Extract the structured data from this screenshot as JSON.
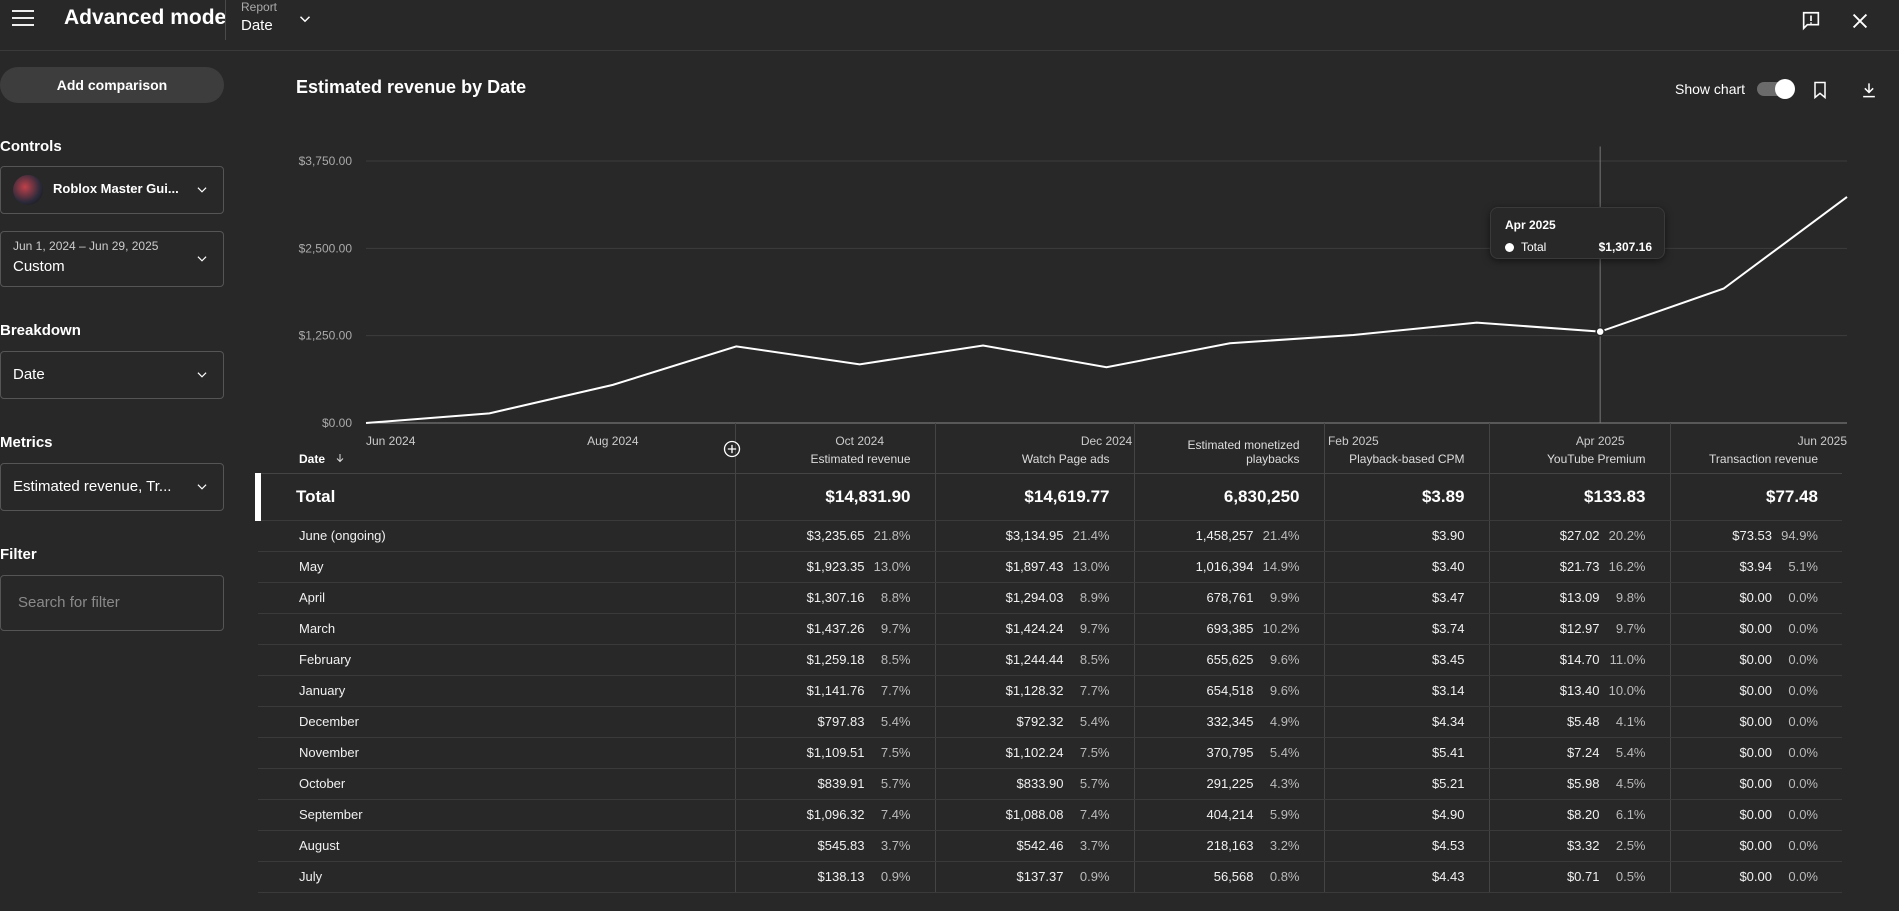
{
  "header": {
    "title": "Advanced mode",
    "report_label": "Report",
    "report_value": "Date"
  },
  "sidebar": {
    "add_comparison": "Add comparison",
    "controls_label": "Controls",
    "channel_name": "Roblox Master Gui...",
    "date_range": "Jun 1, 2024 – Jun 29, 2025",
    "date_preset": "Custom",
    "breakdown_label": "Breakdown",
    "breakdown_value": "Date",
    "metrics_label": "Metrics",
    "metrics_value": "Estimated revenue, Tr...",
    "filter_label": "Filter",
    "filter_placeholder": "Search for filter"
  },
  "chart": {
    "title": "Estimated revenue by Date",
    "show_chart_label": "Show chart",
    "tooltip": {
      "title": "Apr 2025",
      "series": "Total",
      "value": "$1,307.16"
    }
  },
  "chart_data": {
    "type": "line",
    "title": "Estimated revenue by Date",
    "xlabel": "",
    "ylabel": "",
    "ylim": [
      0,
      3750
    ],
    "y_ticks": [
      "$0.00",
      "$1,250.00",
      "$2,500.00",
      "$3,750.00"
    ],
    "x_ticks": [
      "Jun 2024",
      "Aug 2024",
      "Oct 2024",
      "Dec 2024",
      "Feb 2025",
      "Apr 2025",
      "Jun 2025"
    ],
    "x": [
      "Jun 2024",
      "Jul 2024",
      "Aug 2024",
      "Sep 2024",
      "Oct 2024",
      "Nov 2024",
      "Dec 2024",
      "Jan 2025",
      "Feb 2025",
      "Mar 2025",
      "Apr 2025",
      "May 2025",
      "Jun 2025"
    ],
    "series": [
      {
        "name": "Total",
        "values": [
          0,
          138.13,
          545.83,
          1096.32,
          839.91,
          1109.51,
          797.83,
          1141.76,
          1259.18,
          1437.26,
          1307.16,
          1923.35,
          3235.65
        ]
      }
    ],
    "highlight_index": 10,
    "grid": true,
    "line_color": "#ffffff"
  },
  "table": {
    "columns": [
      {
        "label": "Date",
        "sorted": "desc"
      },
      {
        "label": "Estimated revenue"
      },
      {
        "label": "Watch Page ads"
      },
      {
        "label": "Estimated monetized playbacks"
      },
      {
        "label": "Playback-based CPM"
      },
      {
        "label": "YouTube Premium"
      },
      {
        "label": "Transaction revenue"
      }
    ],
    "total": [
      "Total",
      "$14,831.90",
      "$14,619.77",
      "6,830,250",
      "$3.89",
      "$133.83",
      "$77.48"
    ],
    "rows": [
      {
        "date": "June (ongoing)",
        "rev": "$3,235.65",
        "rev_pct": "21.8%",
        "wpa": "$3,134.95",
        "wpa_pct": "21.4%",
        "mp": "1,458,257",
        "mp_pct": "21.4%",
        "cpm": "$3.90",
        "yp": "$27.02",
        "yp_pct": "20.2%",
        "tr": "$73.53",
        "tr_pct": "94.9%"
      },
      {
        "date": "May",
        "rev": "$1,923.35",
        "rev_pct": "13.0%",
        "wpa": "$1,897.43",
        "wpa_pct": "13.0%",
        "mp": "1,016,394",
        "mp_pct": "14.9%",
        "cpm": "$3.40",
        "yp": "$21.73",
        "yp_pct": "16.2%",
        "tr": "$3.94",
        "tr_pct": "5.1%"
      },
      {
        "date": "April",
        "rev": "$1,307.16",
        "rev_pct": "8.8%",
        "wpa": "$1,294.03",
        "wpa_pct": "8.9%",
        "mp": "678,761",
        "mp_pct": "9.9%",
        "cpm": "$3.47",
        "yp": "$13.09",
        "yp_pct": "9.8%",
        "tr": "$0.00",
        "tr_pct": "0.0%"
      },
      {
        "date": "March",
        "rev": "$1,437.26",
        "rev_pct": "9.7%",
        "wpa": "$1,424.24",
        "wpa_pct": "9.7%",
        "mp": "693,385",
        "mp_pct": "10.2%",
        "cpm": "$3.74",
        "yp": "$12.97",
        "yp_pct": "9.7%",
        "tr": "$0.00",
        "tr_pct": "0.0%"
      },
      {
        "date": "February",
        "rev": "$1,259.18",
        "rev_pct": "8.5%",
        "wpa": "$1,244.44",
        "wpa_pct": "8.5%",
        "mp": "655,625",
        "mp_pct": "9.6%",
        "cpm": "$3.45",
        "yp": "$14.70",
        "yp_pct": "11.0%",
        "tr": "$0.00",
        "tr_pct": "0.0%"
      },
      {
        "date": "January",
        "rev": "$1,141.76",
        "rev_pct": "7.7%",
        "wpa": "$1,128.32",
        "wpa_pct": "7.7%",
        "mp": "654,518",
        "mp_pct": "9.6%",
        "cpm": "$3.14",
        "yp": "$13.40",
        "yp_pct": "10.0%",
        "tr": "$0.00",
        "tr_pct": "0.0%"
      },
      {
        "date": "December",
        "rev": "$797.83",
        "rev_pct": "5.4%",
        "wpa": "$792.32",
        "wpa_pct": "5.4%",
        "mp": "332,345",
        "mp_pct": "4.9%",
        "cpm": "$4.34",
        "yp": "$5.48",
        "yp_pct": "4.1%",
        "tr": "$0.00",
        "tr_pct": "0.0%"
      },
      {
        "date": "November",
        "rev": "$1,109.51",
        "rev_pct": "7.5%",
        "wpa": "$1,102.24",
        "wpa_pct": "7.5%",
        "mp": "370,795",
        "mp_pct": "5.4%",
        "cpm": "$5.41",
        "yp": "$7.24",
        "yp_pct": "5.4%",
        "tr": "$0.00",
        "tr_pct": "0.0%"
      },
      {
        "date": "October",
        "rev": "$839.91",
        "rev_pct": "5.7%",
        "wpa": "$833.90",
        "wpa_pct": "5.7%",
        "mp": "291,225",
        "mp_pct": "4.3%",
        "cpm": "$5.21",
        "yp": "$5.98",
        "yp_pct": "4.5%",
        "tr": "$0.00",
        "tr_pct": "0.0%"
      },
      {
        "date": "September",
        "rev": "$1,096.32",
        "rev_pct": "7.4%",
        "wpa": "$1,088.08",
        "wpa_pct": "7.4%",
        "mp": "404,214",
        "mp_pct": "5.9%",
        "cpm": "$4.90",
        "yp": "$8.20",
        "yp_pct": "6.1%",
        "tr": "$0.00",
        "tr_pct": "0.0%"
      },
      {
        "date": "August",
        "rev": "$545.83",
        "rev_pct": "3.7%",
        "wpa": "$542.46",
        "wpa_pct": "3.7%",
        "mp": "218,163",
        "mp_pct": "3.2%",
        "cpm": "$4.53",
        "yp": "$3.32",
        "yp_pct": "2.5%",
        "tr": "$0.00",
        "tr_pct": "0.0%"
      },
      {
        "date": "July",
        "rev": "$138.13",
        "rev_pct": "0.9%",
        "wpa": "$137.37",
        "wpa_pct": "0.9%",
        "mp": "56,568",
        "mp_pct": "0.8%",
        "cpm": "$4.43",
        "yp": "$0.71",
        "yp_pct": "0.5%",
        "tr": "$0.00",
        "tr_pct": "0.0%"
      }
    ]
  },
  "icons": {
    "menu": "hamburger-menu-icon",
    "report_dropdown": "chevron-down-icon",
    "feedback": "feedback-icon",
    "close": "close-icon",
    "bookmark": "bookmark-icon",
    "download": "download-icon",
    "add_column": "add-circle-icon",
    "sort": "arrow-down-icon"
  }
}
